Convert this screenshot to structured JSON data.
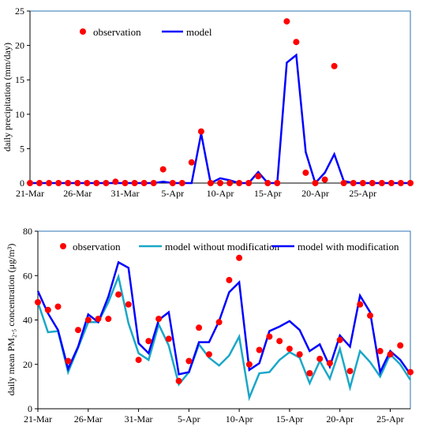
{
  "chart_data": [
    {
      "type": "line",
      "ylabel": "daily precipitation (mm/day)",
      "ylim": [
        0,
        25
      ],
      "yticks": [
        "0",
        "5",
        "10",
        "15",
        "20",
        "25"
      ],
      "xtick_labels": [
        "21-Mar",
        "26-Mar",
        "31-Mar",
        "5-Apr",
        "10-Apr",
        "15-Apr",
        "20-Apr",
        "25-Apr"
      ],
      "legend_placement": "top-left",
      "series": [
        {
          "name": "observation",
          "style": "markers",
          "color": "#ff0000",
          "values": [
            0,
            0,
            0,
            0,
            0,
            0,
            0,
            0,
            0,
            0.2,
            0,
            0,
            0,
            0,
            2,
            0,
            0,
            3,
            7.5,
            0,
            0,
            0,
            0,
            0,
            1,
            0,
            0,
            23.5,
            20.5,
            1.5,
            0,
            0.5,
            17,
            0,
            0,
            0,
            0,
            0,
            0,
            0,
            0
          ]
        },
        {
          "name": "model",
          "style": "line",
          "color": "#0000ff",
          "values": [
            0,
            0,
            0,
            0,
            0,
            0,
            0,
            0,
            0,
            0,
            0,
            0,
            0,
            0,
            0.2,
            0,
            0,
            0,
            7.2,
            0,
            0.7,
            0.4,
            0,
            0,
            1.6,
            0,
            0,
            17.5,
            18.6,
            4.5,
            0,
            1.5,
            4.2,
            0.3,
            0,
            0,
            0,
            0,
            0,
            0,
            0
          ]
        }
      ]
    },
    {
      "type": "line",
      "ylabel": "daily mean PM₂.₅ concentration (μg/m³)",
      "ylim": [
        0,
        80
      ],
      "yticks": [
        "0",
        "20",
        "40",
        "60",
        "80"
      ],
      "xtick_labels": [
        "21-Mar",
        "26-Mar",
        "31-Mar",
        "5-Apr",
        "10-Apr",
        "15-Apr",
        "20-Apr",
        "25-Apr"
      ],
      "legend_placement": "top",
      "series": [
        {
          "name": "observation",
          "style": "markers",
          "color": "#ff0000",
          "values": [
            48,
            44.5,
            46,
            21.5,
            35.5,
            40,
            40.5,
            40.5,
            51.5,
            47,
            22,
            30.5,
            40.5,
            31.5,
            12.5,
            21.5,
            36.5,
            24.5,
            39,
            58,
            68,
            20,
            26.5,
            32.5,
            30.5,
            27,
            24.5,
            16,
            22.5,
            20.5,
            31,
            17,
            47,
            42,
            26,
            24.5,
            28.5,
            16.5
          ]
        },
        {
          "name": "model without modification",
          "style": "line",
          "color": "#1aa7c8",
          "values": [
            48,
            34.5,
            35,
            16.5,
            27.5,
            39,
            39,
            48,
            59.5,
            38.5,
            25,
            22,
            38,
            28.5,
            11,
            16.5,
            29,
            23,
            19.5,
            24,
            32.5,
            5,
            16,
            16.5,
            22,
            25.5,
            23,
            11.5,
            21.5,
            13.5,
            27,
            9.5,
            26,
            21,
            14.5,
            24.5,
            20,
            13
          ]
        },
        {
          "name": "model with modification",
          "style": "line",
          "color": "#0000ff",
          "values": [
            53,
            43,
            35.5,
            18,
            28,
            42.5,
            39,
            50.5,
            66,
            63.5,
            29.5,
            25,
            40,
            43.5,
            15.5,
            16.5,
            30,
            30,
            39.5,
            52.5,
            57,
            17.5,
            20.5,
            35,
            37,
            39.5,
            35.5,
            26,
            29,
            19,
            33,
            28,
            51,
            43.5,
            16.5,
            26,
            22,
            15.5
          ]
        }
      ]
    }
  ]
}
